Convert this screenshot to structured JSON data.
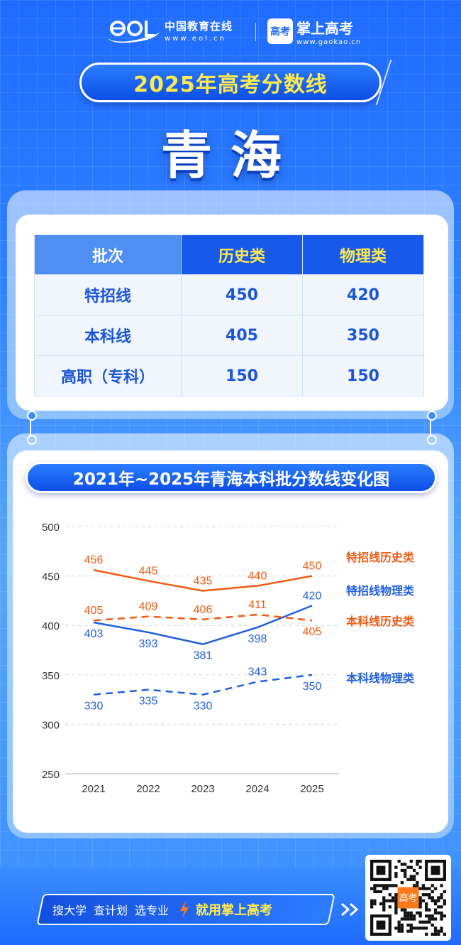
{
  "header": {
    "eol_name": "中国教育在线",
    "eol_url": "www.eol.cn",
    "gk_logo_glyph": "高考",
    "gk_name": "掌上高考",
    "gk_url": "www.gaokao.cn"
  },
  "title": "2025年高考分数线",
  "province": "青海",
  "table": {
    "headers": [
      "批次",
      "历史类",
      "物理类"
    ],
    "rows": [
      {
        "batch": "特招线",
        "history": "450",
        "physics": "420"
      },
      {
        "batch": "本科线",
        "history": "405",
        "physics": "350"
      },
      {
        "batch": "高职（专科）",
        "history": "150",
        "physics": "150"
      }
    ]
  },
  "chart_title": "2021年~2025年青海本科批分数线变化图",
  "chart_data": {
    "type": "line",
    "x": [
      "2021",
      "2022",
      "2023",
      "2024",
      "2025"
    ],
    "ylim": [
      250,
      500
    ],
    "yticks": [
      500,
      450,
      400,
      350,
      300,
      250
    ],
    "grid": true,
    "legend": "right",
    "series": [
      {
        "name": "特招线历史类",
        "values": [
          456,
          445,
          435,
          440,
          450
        ],
        "color": "#f15a12",
        "dash": false
      },
      {
        "name": "特招线物理类",
        "values": [
          403,
          393,
          381,
          398,
          420
        ],
        "color": "#1f5fe0",
        "dash": false
      },
      {
        "name": "本科线历史类",
        "values": [
          405,
          409,
          406,
          411,
          405
        ],
        "color": "#f15a12",
        "dash": true
      },
      {
        "name": "本科线物理类",
        "values": [
          330,
          335,
          330,
          343,
          350
        ],
        "color": "#1f5fe0",
        "dash": true
      }
    ]
  },
  "footer": {
    "items": [
      "搜大学",
      "查计划",
      "选专业"
    ],
    "main": "就用掌上高考",
    "qr_badge": "高考"
  }
}
